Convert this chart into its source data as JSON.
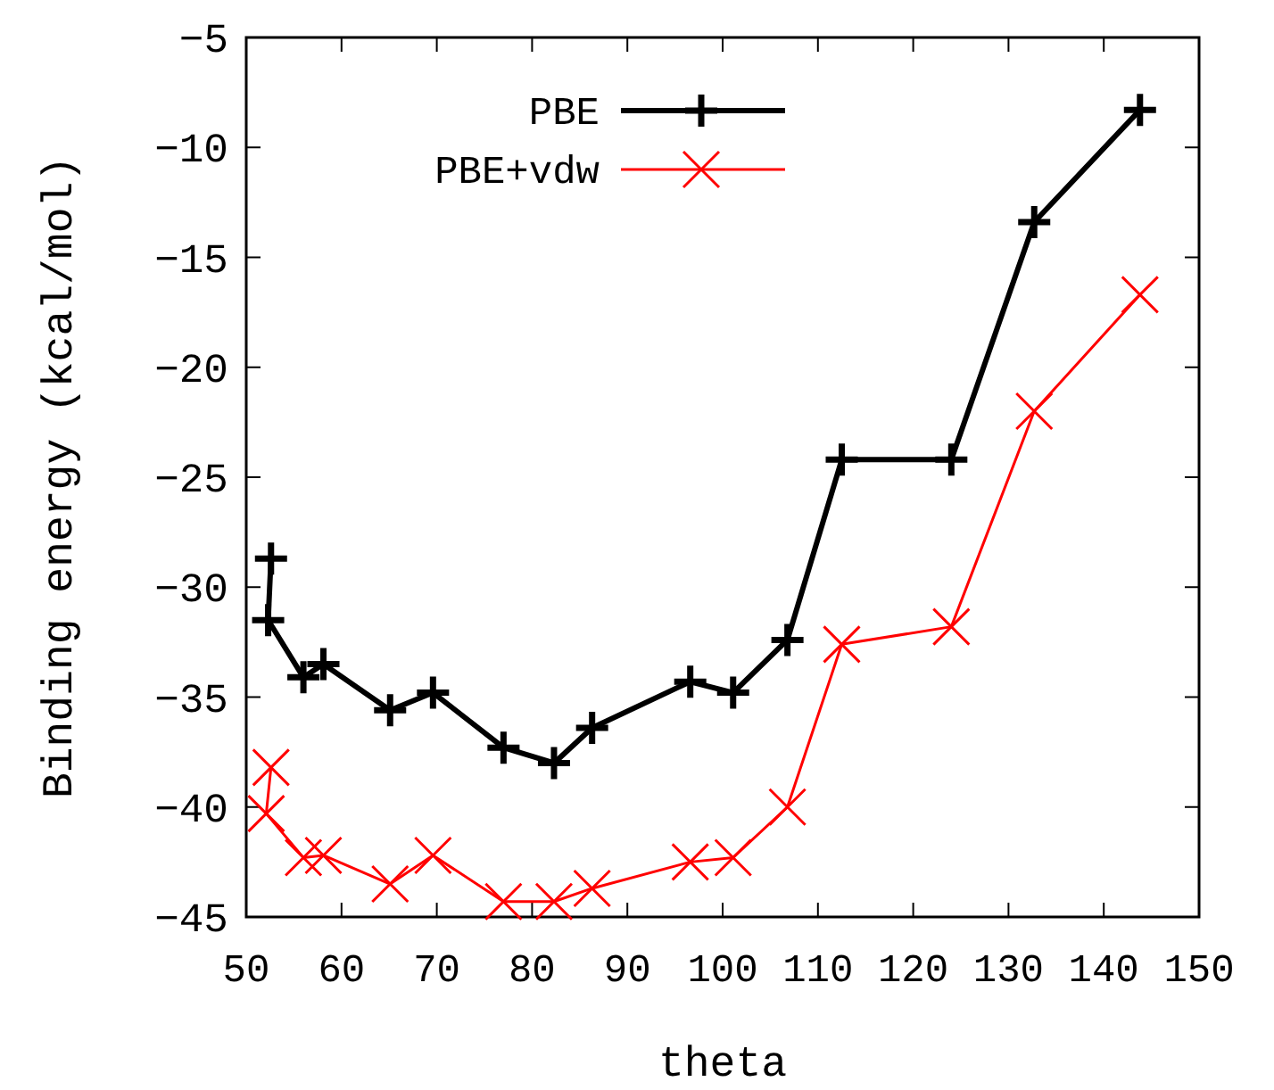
{
  "chart_data": {
    "type": "line",
    "xlabel": "theta",
    "ylabel": "Binding energy (kcal/mol)",
    "xlim": [
      50,
      150
    ],
    "xticks": [
      50,
      60,
      70,
      80,
      90,
      100,
      110,
      120,
      130,
      140,
      150
    ],
    "ylim": [
      -45,
      -5
    ],
    "yticks": [
      -45,
      -40,
      -35,
      -30,
      -25,
      -20,
      -15,
      -10,
      -5
    ],
    "grid": false,
    "legend": "top left",
    "line_style": "solid",
    "series": [
      {
        "name": "PBE",
        "color": "#000000",
        "marker": "plus",
        "x": [
          52.6,
          52.3,
          56.0,
          58.1,
          65.1,
          69.6,
          77.0,
          82.3,
          86.3,
          96.6,
          101.1,
          106.8,
          112.5,
          124.0,
          132.7,
          143.8
        ],
        "values": [
          -28.7,
          -31.5,
          -34.1,
          -33.5,
          -35.6,
          -34.8,
          -37.3,
          -38.0,
          -36.4,
          -34.3,
          -34.8,
          -32.4,
          -24.2,
          -24.2,
          -13.4,
          -8.3
        ]
      },
      {
        "name": "PBE+vdw",
        "color": "#ff0000",
        "marker": "cross",
        "x": [
          52.6,
          52.1,
          56.0,
          58.1,
          65.1,
          69.6,
          77.0,
          82.3,
          86.3,
          96.6,
          101.1,
          106.8,
          112.5,
          124.0,
          132.7,
          143.8
        ],
        "values": [
          -38.2,
          -40.3,
          -42.3,
          -42.2,
          -43.5,
          -42.2,
          -44.3,
          -44.3,
          -43.7,
          -42.5,
          -42.3,
          -40.0,
          -32.6,
          -31.8,
          -22.0,
          -16.7
        ]
      }
    ]
  }
}
